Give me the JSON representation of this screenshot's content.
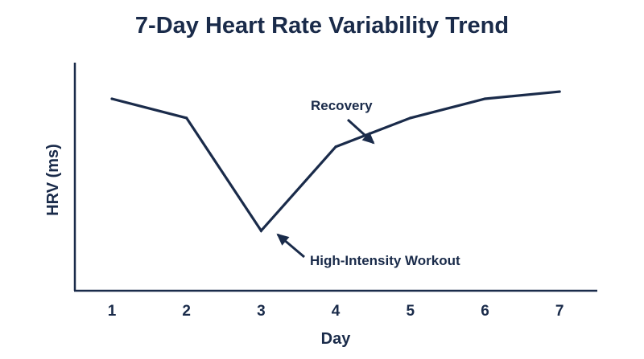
{
  "chart_data": {
    "type": "line",
    "title": "7-Day Heart Rate Variability Trend",
    "xlabel": "Day",
    "ylabel": "HRV (ms)",
    "x": [
      1,
      2,
      3,
      4,
      5,
      6,
      7
    ],
    "series": [
      {
        "values": [
          80,
          72,
          25,
          60,
          72,
          80,
          83
        ]
      }
    ],
    "ylim": [
      0,
      100
    ],
    "grid": false,
    "y_tick_labels_shown": false,
    "annotations": [
      {
        "text": "Recovery",
        "x": 4.5,
        "y": 71
      },
      {
        "text": "High-Intensity Workout",
        "x": 3.2,
        "y": 27
      }
    ],
    "colors": {
      "line": "#1a2b4a",
      "text": "#1a2b4a",
      "background": "#ffffff"
    }
  }
}
